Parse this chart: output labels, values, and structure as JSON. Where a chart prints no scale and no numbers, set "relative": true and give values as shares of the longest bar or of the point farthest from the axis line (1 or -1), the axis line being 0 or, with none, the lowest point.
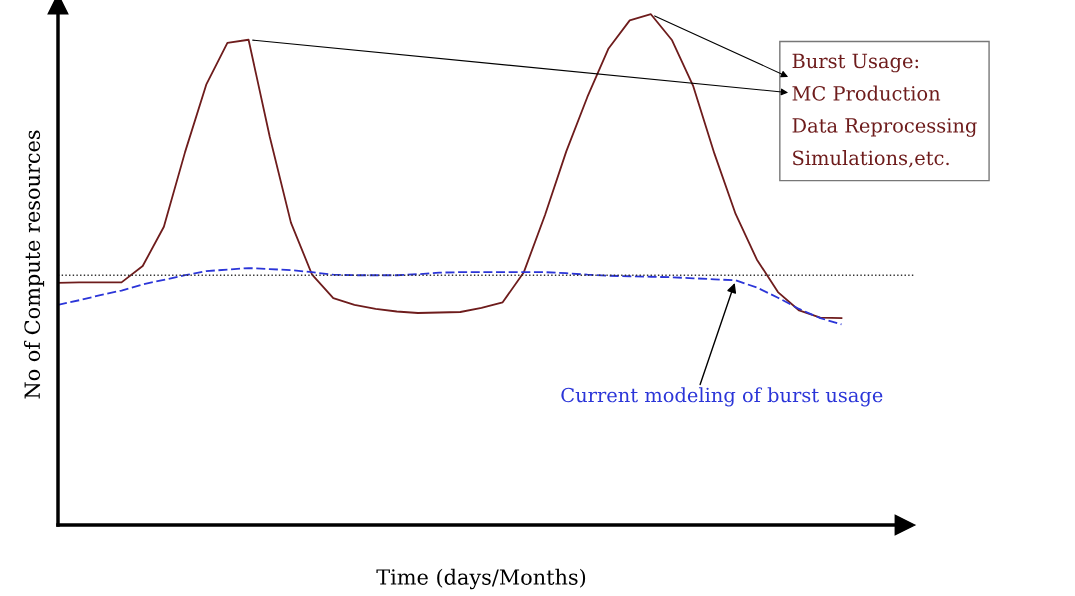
{
  "chart_data": {
    "type": "line",
    "relative": true,
    "xlabel": "Time (days/Months)",
    "ylabel": "No of Compute resources",
    "categories": [
      null,
      null,
      null,
      null,
      null,
      null,
      null,
      null,
      null,
      null,
      null,
      null,
      null,
      null,
      null,
      null,
      null,
      null,
      null,
      null,
      null,
      null,
      null,
      null,
      null,
      null,
      null,
      null,
      null,
      null,
      null,
      null,
      null,
      null,
      null,
      null,
      null,
      null
    ],
    "series": [
      {
        "color": "#6e1c1c",
        "line_style": "solid",
        "values": [
          0.474,
          0.475,
          0.475,
          0.475,
          0.507,
          0.584,
          0.73,
          0.862,
          0.944,
          0.95,
          0.76,
          0.592,
          0.49,
          0.444,
          0.431,
          0.423,
          0.418,
          0.415,
          0.416,
          0.417,
          0.425,
          0.436,
          0.495,
          0.607,
          0.731,
          0.838,
          0.933,
          0.988,
          1.0,
          0.949,
          0.859,
          0.727,
          0.609,
          0.52,
          0.456,
          0.42,
          0.406,
          0.405
        ]
      },
      {
        "color": "#2b35d8",
        "line_style": "dashed",
        "values": [
          0.431,
          0.44,
          0.45,
          0.459,
          0.471,
          0.48,
          0.489,
          0.497,
          0.5,
          0.503,
          0.501,
          0.499,
          0.495,
          0.49,
          0.489,
          0.489,
          0.489,
          0.491,
          0.494,
          0.495,
          0.495,
          0.495,
          0.495,
          0.495,
          0.493,
          0.49,
          0.488,
          0.487,
          0.486,
          0.485,
          0.483,
          0.481,
          0.479,
          0.465,
          0.445,
          0.423,
          0.405,
          0.393
        ]
      }
    ],
    "ref_lines": [
      {
        "axis": "y",
        "value": 0.489,
        "color": "#333333",
        "line_style": "dotted"
      }
    ],
    "annotations": [
      "Burst Usage:\nMC Production\nData Reprocessing\nSimulations,etc.",
      "Current modeling of burst usage"
    ]
  }
}
